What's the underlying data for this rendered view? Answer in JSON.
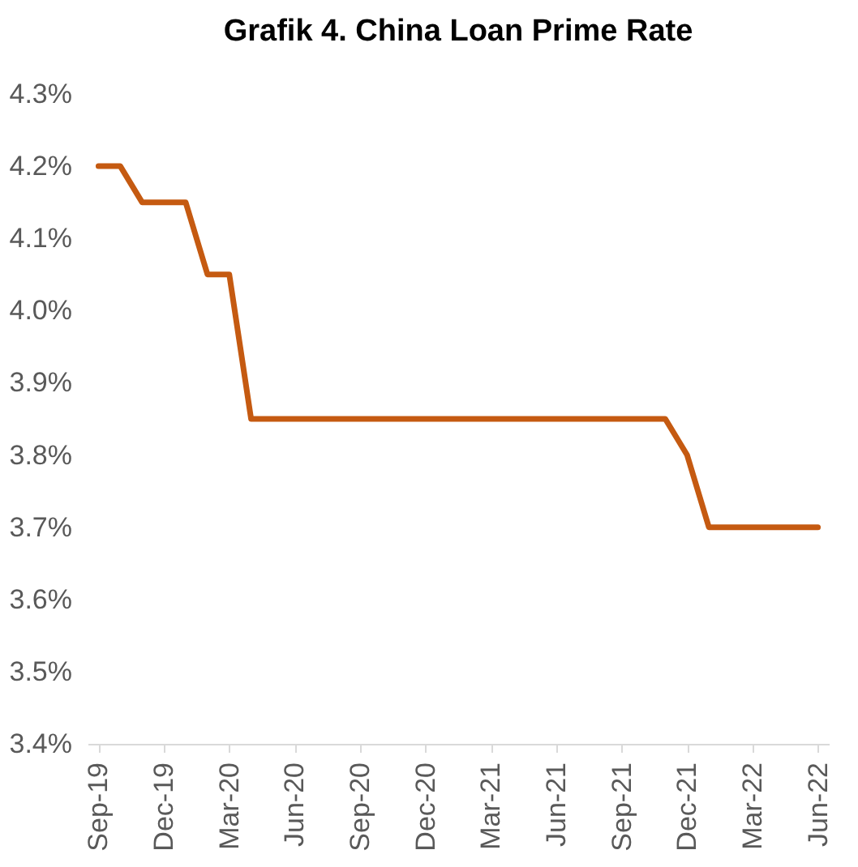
{
  "chart_data": {
    "type": "line",
    "title": "Grafik 4. China Loan Prime Rate",
    "categories": [
      "Sep-19",
      null,
      null,
      "Dec-19",
      null,
      null,
      "Mar-20",
      null,
      null,
      "Jun-20",
      null,
      null,
      "Sep-20",
      null,
      null,
      "Dec-20",
      null,
      null,
      "Mar-21",
      null,
      null,
      "Jun-21",
      null,
      null,
      "Sep-21",
      null,
      null,
      "Dec-21",
      null,
      null,
      "Mar-22",
      null,
      null,
      "Jun-22"
    ],
    "series": [
      {
        "color": "#c55a11",
        "values": [
          4.2,
          4.2,
          4.15,
          4.15,
          4.15,
          4.05,
          4.05,
          3.85,
          3.85,
          3.85,
          3.85,
          3.85,
          3.85,
          3.85,
          3.85,
          3.85,
          3.85,
          3.85,
          3.85,
          3.85,
          3.85,
          3.85,
          3.85,
          3.85,
          3.85,
          3.85,
          3.85,
          3.8,
          3.7,
          3.7,
          3.7,
          3.7,
          3.7,
          3.7
        ]
      }
    ],
    "ylim": [
      3.4,
      4.3
    ],
    "yticks": [
      {
        "value": 3.4,
        "label": "3.4%"
      },
      {
        "value": 3.5,
        "label": "3.5%"
      },
      {
        "value": 3.6,
        "label": "3.6%"
      },
      {
        "value": 3.7,
        "label": "3.7%"
      },
      {
        "value": 3.8,
        "label": "3.8%"
      },
      {
        "value": 3.9,
        "label": "3.9%"
      },
      {
        "value": 4.0,
        "label": "4.0%"
      },
      {
        "value": 4.1,
        "label": "4.1%"
      },
      {
        "value": 4.2,
        "label": "4.2%"
      },
      {
        "value": 4.3,
        "label": "4.3%"
      }
    ],
    "grid": false,
    "marker": "none",
    "line_style": "solid"
  }
}
